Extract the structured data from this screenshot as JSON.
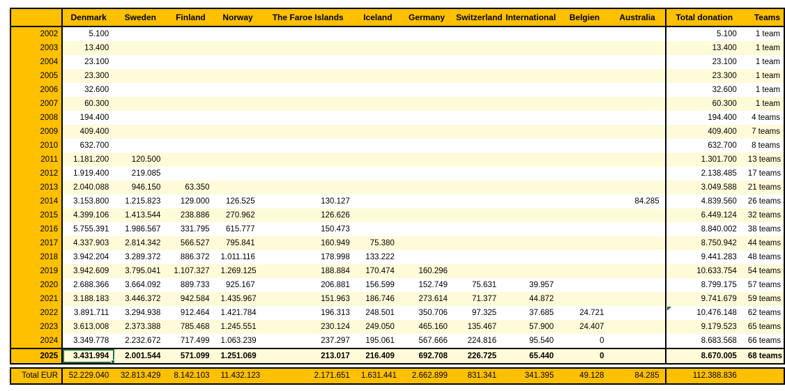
{
  "sheet": {
    "columns": [
      {
        "key": "year",
        "label": ""
      },
      {
        "key": "denmark",
        "label": "Denmark"
      },
      {
        "key": "sweden",
        "label": "Sweden"
      },
      {
        "key": "finland",
        "label": "Finland"
      },
      {
        "key": "norway",
        "label": "Norway"
      },
      {
        "key": "faroe-islands",
        "label": "The Faroe Islands"
      },
      {
        "key": "iceland",
        "label": "Iceland"
      },
      {
        "key": "germany",
        "label": "Germany"
      },
      {
        "key": "switzerland",
        "label": "Switzerland"
      },
      {
        "key": "international",
        "label": "International"
      },
      {
        "key": "belgien",
        "label": "Belgien"
      },
      {
        "key": "australia",
        "label": "Australia"
      },
      {
        "key": "total-donation",
        "label": "Total donation"
      },
      {
        "key": "teams",
        "label": "Teams"
      }
    ],
    "rows": [
      {
        "year": "2002",
        "values": [
          "5.100",
          "",
          "",
          "",
          "",
          "",
          "",
          "",
          "",
          "",
          ""
        ],
        "total": "5.100",
        "teams": "1 team"
      },
      {
        "year": "2003",
        "values": [
          "13.400",
          "",
          "",
          "",
          "",
          "",
          "",
          "",
          "",
          "",
          ""
        ],
        "total": "13.400",
        "teams": "1 team"
      },
      {
        "year": "2004",
        "values": [
          "23.100",
          "",
          "",
          "",
          "",
          "",
          "",
          "",
          "",
          "",
          ""
        ],
        "total": "23.100",
        "teams": "1 team"
      },
      {
        "year": "2005",
        "values": [
          "23.300",
          "",
          "",
          "",
          "",
          "",
          "",
          "",
          "",
          "",
          ""
        ],
        "total": "23.300",
        "teams": "1 team"
      },
      {
        "year": "2006",
        "values": [
          "32.600",
          "",
          "",
          "",
          "",
          "",
          "",
          "",
          "",
          "",
          ""
        ],
        "total": "32.600",
        "teams": "1 team"
      },
      {
        "year": "2007",
        "values": [
          "60.300",
          "",
          "",
          "",
          "",
          "",
          "",
          "",
          "",
          "",
          ""
        ],
        "total": "60.300",
        "teams": "1 team"
      },
      {
        "year": "2008",
        "values": [
          "194.400",
          "",
          "",
          "",
          "",
          "",
          "",
          "",
          "",
          "",
          ""
        ],
        "total": "194.400",
        "teams": "4 teams"
      },
      {
        "year": "2009",
        "values": [
          "409.400",
          "",
          "",
          "",
          "",
          "",
          "",
          "",
          "",
          "",
          ""
        ],
        "total": "409.400",
        "teams": "7 teams"
      },
      {
        "year": "2010",
        "values": [
          "632.700",
          "",
          "",
          "",
          "",
          "",
          "",
          "",
          "",
          "",
          ""
        ],
        "total": "632.700",
        "teams": "8 teams"
      },
      {
        "year": "2011",
        "values": [
          "1.181.200",
          "120.500",
          "",
          "",
          "",
          "",
          "",
          "",
          "",
          "",
          ""
        ],
        "total": "1.301.700",
        "teams": "13 teams"
      },
      {
        "year": "2012",
        "values": [
          "1.919.400",
          "219.085",
          "",
          "",
          "",
          "",
          "",
          "",
          "",
          "",
          ""
        ],
        "total": "2.138.485",
        "teams": "17 teams"
      },
      {
        "year": "2013",
        "values": [
          "2.040.088",
          "946.150",
          "63.350",
          "",
          "",
          "",
          "",
          "",
          "",
          "",
          ""
        ],
        "total": "3.049.588",
        "teams": "21 teams"
      },
      {
        "year": "2014",
        "values": [
          "3.153.800",
          "1.215.823",
          "129.000",
          "126.525",
          "130.127",
          "",
          "",
          "",
          "",
          "",
          "84.285"
        ],
        "total": "4.839.560",
        "teams": "26 teams"
      },
      {
        "year": "2015",
        "values": [
          "4.399.106",
          "1.413.544",
          "238.886",
          "270.962",
          "126.626",
          "",
          "",
          "",
          "",
          "",
          ""
        ],
        "total": "6.449.124",
        "teams": "32 teams"
      },
      {
        "year": "2016",
        "values": [
          "5.755.391",
          "1.986.567",
          "331.795",
          "615.777",
          "150.473",
          "",
          "",
          "",
          "",
          "",
          ""
        ],
        "total": "8.840.002",
        "teams": "38 teams"
      },
      {
        "year": "2017",
        "values": [
          "4.337.903",
          "2.814.342",
          "566.527",
          "795.841",
          "160.949",
          "75.380",
          "",
          "",
          "",
          "",
          ""
        ],
        "total": "8.750.942",
        "teams": "44 teams"
      },
      {
        "year": "2018",
        "values": [
          "3.942.204",
          "3.289.372",
          "886.372",
          "1.011.116",
          "178.998",
          "133.222",
          "",
          "",
          "",
          "",
          ""
        ],
        "total": "9.441.283",
        "teams": "48 teams"
      },
      {
        "year": "2019",
        "values": [
          "3.942.609",
          "3.795.041",
          "1.107.327",
          "1.269.125",
          "188.884",
          "170.474",
          "160.296",
          "",
          "",
          "",
          ""
        ],
        "total": "10.633.754",
        "teams": "54 teams"
      },
      {
        "year": "2020",
        "values": [
          "2.688.366",
          "3.664.092",
          "889.733",
          "925.167",
          "206.881",
          "156.599",
          "152.749",
          "75.631",
          "39.957",
          "",
          ""
        ],
        "total": "8.799.175",
        "teams": "57 teams"
      },
      {
        "year": "2021",
        "values": [
          "3.188.183",
          "3.446.372",
          "942.584",
          "1.435.967",
          "151.963",
          "186.746",
          "273.614",
          "71.377",
          "44.872",
          "",
          ""
        ],
        "total": "9.741.679",
        "teams": "59 teams"
      },
      {
        "year": "2022",
        "values": [
          "3.891.711",
          "3.294.938",
          "912.464",
          "1.421.784",
          "196.313",
          "248.501",
          "350.706",
          "97.325",
          "37.685",
          "24.721",
          ""
        ],
        "total": "10.476.148",
        "teams": "62 teams"
      },
      {
        "year": "2023",
        "values": [
          "3.613.008",
          "2.373.388",
          "785.468",
          "1.245.551",
          "230.124",
          "249.050",
          "465.160",
          "135.467",
          "57.900",
          "24.407",
          ""
        ],
        "total": "9.179.523",
        "teams": "65 teams"
      },
      {
        "year": "2024",
        "values": [
          "3.349.778",
          "2.232.672",
          "717.499",
          "1.063.239",
          "237.297",
          "195.061",
          "567.666",
          "224.816",
          "95.540",
          "0",
          ""
        ],
        "total": "8.683.568",
        "teams": "66 teams"
      },
      {
        "year": "2025",
        "values": [
          "3.431.994",
          "2.001.544",
          "571.099",
          "1.251.069",
          "213.017",
          "216.409",
          "692.708",
          "226.725",
          "65.440",
          "0",
          ""
        ],
        "total": "8.670.005",
        "teams": "68 teams",
        "emphasis": true
      }
    ],
    "total_row": {
      "label": "Total EUR",
      "values": [
        "52.229.040",
        "32.813.429",
        "8.142.103",
        "11.432.123",
        "2.171.651",
        "1.631.441",
        "2.662.899",
        "831.341",
        "341.395",
        "49.128",
        "84.285"
      ],
      "total": "112.388.836",
      "teams": ""
    },
    "selection": {
      "row": "2025",
      "column_key": "denmark"
    },
    "error_indicator": {
      "row": "2022",
      "column_key": "total-donation"
    },
    "colors": {
      "header_fill": "#FFC000",
      "stripe_fill": "#FFFBD9",
      "selection_green": "#217346",
      "indicator_green": "#1E7145",
      "border_black": "#000000"
    }
  }
}
